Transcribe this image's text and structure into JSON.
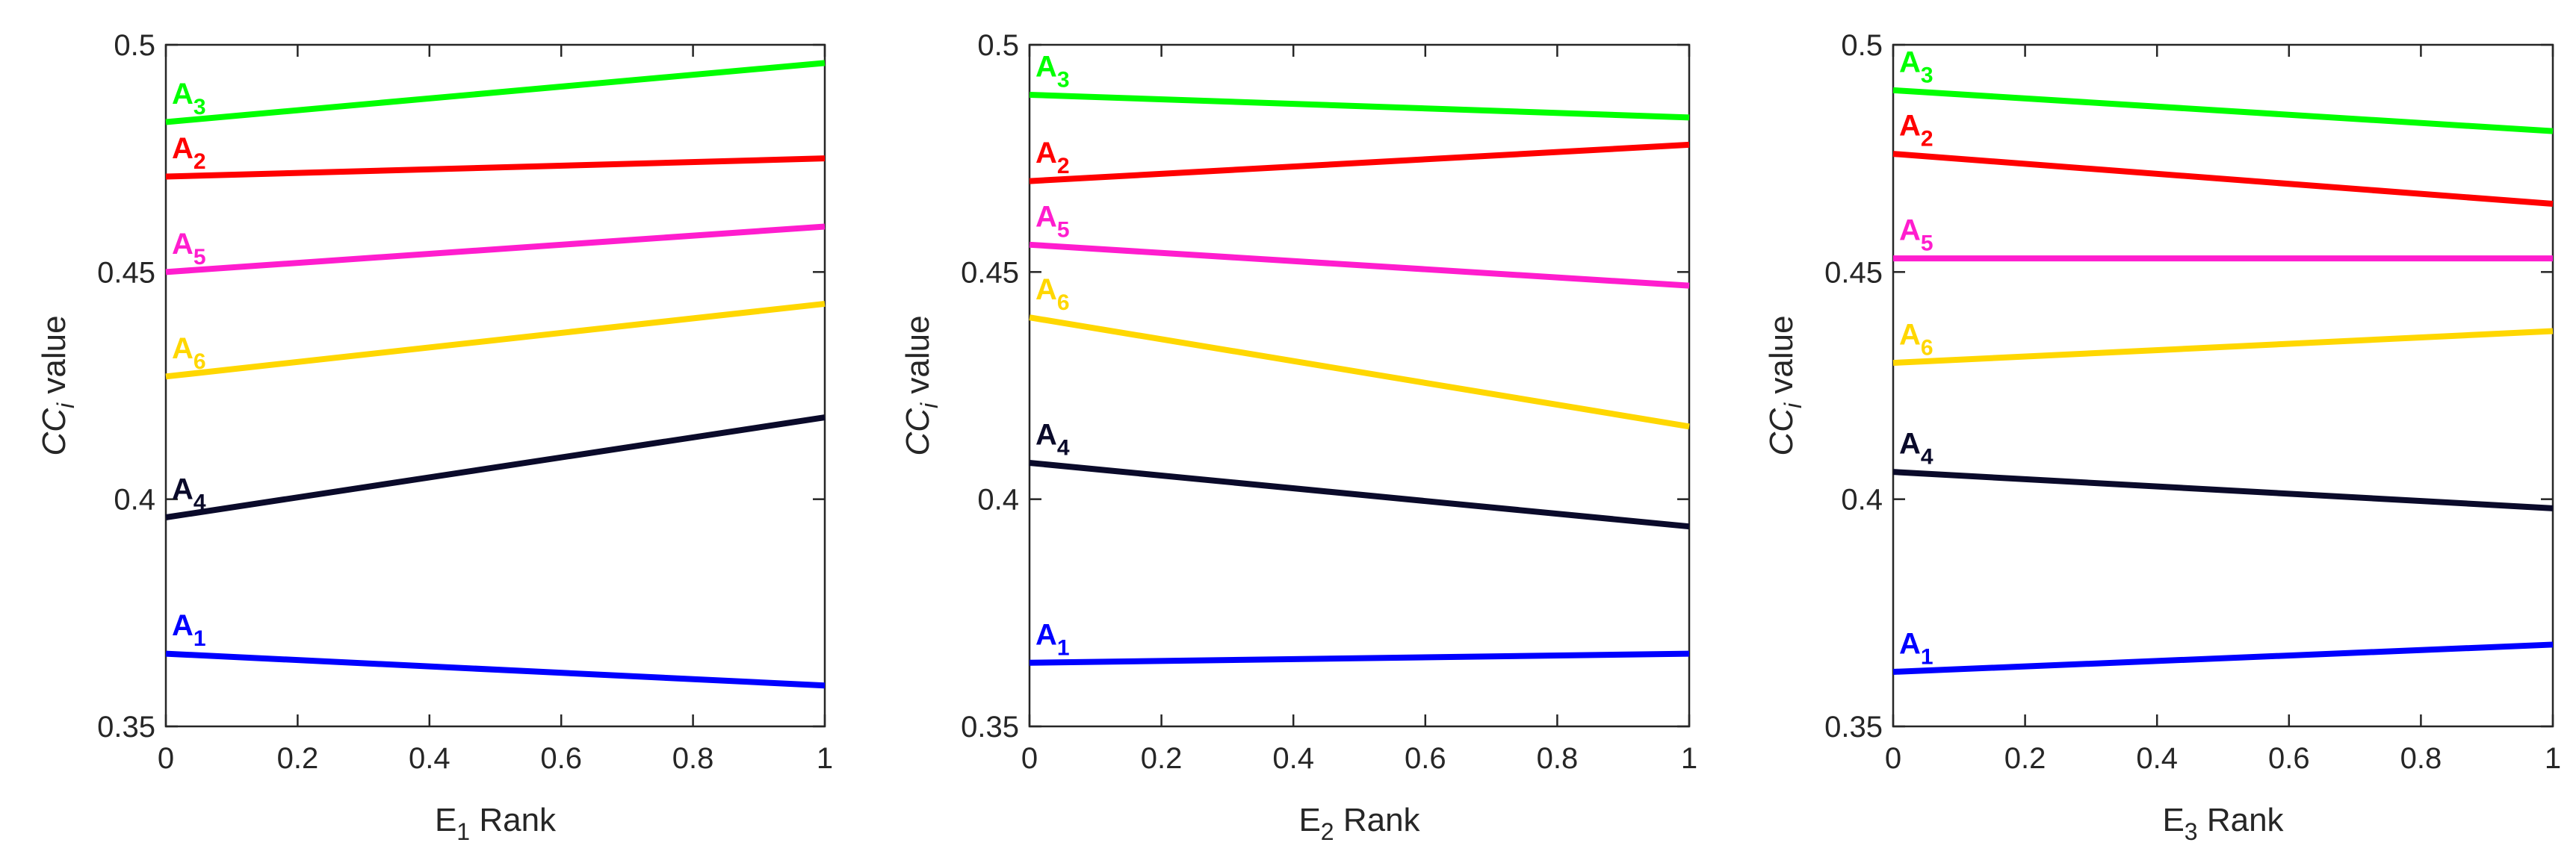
{
  "figure": {
    "colors": {
      "A1": "#0000ff",
      "A2": "#ff0000",
      "A3": "#00ff00",
      "A4": "#0a0a2a",
      "A5": "#ff1dce",
      "A6": "#ffd700",
      "axis": "#262626"
    }
  },
  "chart_data": [
    {
      "type": "line",
      "xlabel": "E",
      "xlabel_sub": "1",
      "xlabel_rest": " Rank",
      "ylabel": "CC",
      "ylabel_sub": "i",
      "ylabel_rest": " value",
      "xlim": [
        0,
        1
      ],
      "ylim": [
        0.35,
        0.5
      ],
      "xticks": [
        0,
        0.2,
        0.4,
        0.6,
        0.8,
        1
      ],
      "xtick_labels": [
        "0",
        "0.2",
        "0.4",
        "0.6",
        "0.8",
        "1"
      ],
      "yticks": [
        0.35,
        0.4,
        0.45,
        0.5
      ],
      "ytick_labels": [
        "0.35",
        "0.4",
        "0.45",
        "0.5"
      ],
      "series": [
        {
          "key": "A3",
          "name": "A",
          "sub": "3",
          "x": [
            0,
            1
          ],
          "y": [
            0.483,
            0.496
          ],
          "label_y": 0.488
        },
        {
          "key": "A2",
          "name": "A",
          "sub": "2",
          "x": [
            0,
            1
          ],
          "y": [
            0.471,
            0.475
          ],
          "label_y": 0.476
        },
        {
          "key": "A5",
          "name": "A",
          "sub": "5",
          "x": [
            0,
            1
          ],
          "y": [
            0.45,
            0.46
          ],
          "label_y": 0.455
        },
        {
          "key": "A6",
          "name": "A",
          "sub": "6",
          "x": [
            0,
            1
          ],
          "y": [
            0.427,
            0.443
          ],
          "label_y": 0.432
        },
        {
          "key": "A4",
          "name": "A",
          "sub": "4",
          "x": [
            0,
            1
          ],
          "y": [
            0.396,
            0.418
          ],
          "label_y": 0.401
        },
        {
          "key": "A1",
          "name": "A",
          "sub": "1",
          "x": [
            0,
            1
          ],
          "y": [
            0.366,
            0.359
          ],
          "label_y": 0.371
        }
      ]
    },
    {
      "type": "line",
      "xlabel": "E",
      "xlabel_sub": "2",
      "xlabel_rest": " Rank",
      "ylabel": "CC",
      "ylabel_sub": "i",
      "ylabel_rest": " value",
      "xlim": [
        0,
        1
      ],
      "ylim": [
        0.35,
        0.5
      ],
      "xticks": [
        0,
        0.2,
        0.4,
        0.6,
        0.8,
        1
      ],
      "xtick_labels": [
        "0",
        "0.2",
        "0.4",
        "0.6",
        "0.8",
        "1"
      ],
      "yticks": [
        0.35,
        0.4,
        0.45,
        0.5
      ],
      "ytick_labels": [
        "0.35",
        "0.4",
        "0.45",
        "0.5"
      ],
      "series": [
        {
          "key": "A3",
          "name": "A",
          "sub": "3",
          "x": [
            0,
            1
          ],
          "y": [
            0.489,
            0.484
          ],
          "label_y": 0.494
        },
        {
          "key": "A2",
          "name": "A",
          "sub": "2",
          "x": [
            0,
            1
          ],
          "y": [
            0.47,
            0.478
          ],
          "label_y": 0.475
        },
        {
          "key": "A5",
          "name": "A",
          "sub": "5",
          "x": [
            0,
            1
          ],
          "y": [
            0.456,
            0.447
          ],
          "label_y": 0.461
        },
        {
          "key": "A6",
          "name": "A",
          "sub": "6",
          "x": [
            0,
            1
          ],
          "y": [
            0.44,
            0.416
          ],
          "label_y": 0.445
        },
        {
          "key": "A4",
          "name": "A",
          "sub": "4",
          "x": [
            0,
            1
          ],
          "y": [
            0.408,
            0.394
          ],
          "label_y": 0.413
        },
        {
          "key": "A1",
          "name": "A",
          "sub": "1",
          "x": [
            0,
            1
          ],
          "y": [
            0.364,
            0.366
          ],
          "label_y": 0.369
        }
      ]
    },
    {
      "type": "line",
      "xlabel": "E",
      "xlabel_sub": "3",
      "xlabel_rest": " Rank",
      "ylabel": "CC",
      "ylabel_sub": "i",
      "ylabel_rest": " value",
      "xlim": [
        0,
        1
      ],
      "ylim": [
        0.35,
        0.5
      ],
      "xticks": [
        0,
        0.2,
        0.4,
        0.6,
        0.8,
        1
      ],
      "xtick_labels": [
        "0",
        "0.2",
        "0.4",
        "0.6",
        "0.8",
        "1"
      ],
      "yticks": [
        0.35,
        0.4,
        0.45,
        0.5
      ],
      "ytick_labels": [
        "0.35",
        "0.4",
        "0.45",
        "0.5"
      ],
      "series": [
        {
          "key": "A3",
          "name": "A",
          "sub": "3",
          "x": [
            0,
            1
          ],
          "y": [
            0.49,
            0.481
          ],
          "label_y": 0.495
        },
        {
          "key": "A2",
          "name": "A",
          "sub": "2",
          "x": [
            0,
            1
          ],
          "y": [
            0.476,
            0.465
          ],
          "label_y": 0.481
        },
        {
          "key": "A5",
          "name": "A",
          "sub": "5",
          "x": [
            0,
            1
          ],
          "y": [
            0.453,
            0.453
          ],
          "label_y": 0.458
        },
        {
          "key": "A6",
          "name": "A",
          "sub": "6",
          "x": [
            0,
            1
          ],
          "y": [
            0.43,
            0.437
          ],
          "label_y": 0.435
        },
        {
          "key": "A4",
          "name": "A",
          "sub": "4",
          "x": [
            0,
            1
          ],
          "y": [
            0.406,
            0.398
          ],
          "label_y": 0.411
        },
        {
          "key": "A1",
          "name": "A",
          "sub": "1",
          "x": [
            0,
            1
          ],
          "y": [
            0.362,
            0.368
          ],
          "label_y": 0.367
        }
      ]
    }
  ]
}
